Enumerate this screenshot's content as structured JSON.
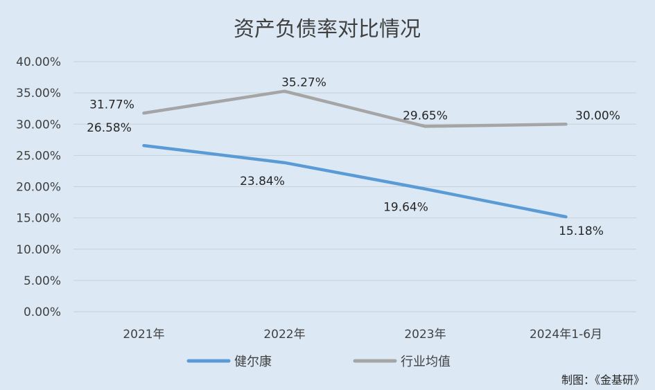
{
  "chart_data": {
    "type": "line",
    "title": "资产负债率对比情况",
    "categories": [
      "2021年",
      "2022年",
      "2023年",
      "2024年1-6月"
    ],
    "y_ticks": [
      "0.00%",
      "5.00%",
      "10.00%",
      "15.00%",
      "20.00%",
      "25.00%",
      "30.00%",
      "35.00%",
      "40.00%"
    ],
    "ylim": [
      0,
      40
    ],
    "grid": true,
    "legend_position": "bottom",
    "series": [
      {
        "name": "健尔康",
        "color": "#5b9bd5",
        "values": [
          26.58,
          23.84,
          19.64,
          15.18
        ],
        "labels": [
          "26.58%",
          "23.84%",
          "19.64%",
          "15.18%"
        ]
      },
      {
        "name": "行业均值",
        "color": "#a5a5a5",
        "values": [
          31.77,
          35.27,
          29.65,
          30.0
        ],
        "labels": [
          "31.77%",
          "35.27%",
          "29.65%",
          "30.00%"
        ]
      }
    ],
    "credit": "制图：《金基研》"
  }
}
